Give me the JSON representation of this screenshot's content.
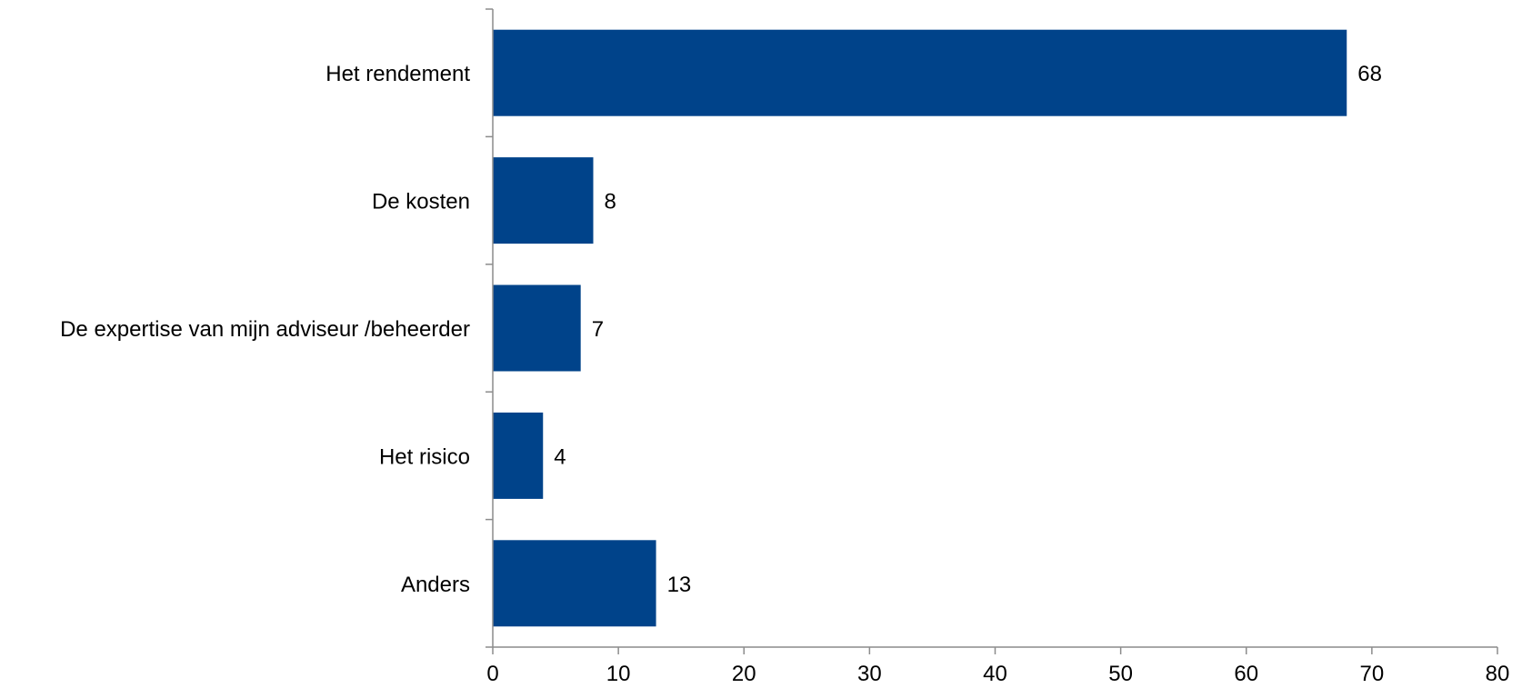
{
  "chart_data": {
    "type": "bar",
    "orientation": "horizontal",
    "categories": [
      "Het rendement",
      "De kosten",
      "De expertise van mijn adviseur /beheerder",
      "Het risico",
      "Anders"
    ],
    "values": [
      68,
      8,
      7,
      4,
      13
    ],
    "data_labels": [
      "68",
      "8",
      "7",
      "4",
      "13"
    ],
    "xlim": [
      0,
      80
    ],
    "xticks": [
      0,
      10,
      20,
      30,
      40,
      50,
      60,
      70,
      80
    ],
    "title": "",
    "xlabel": "",
    "ylabel": "",
    "grid": false,
    "legend": "none",
    "bar_color": "#00438a"
  }
}
